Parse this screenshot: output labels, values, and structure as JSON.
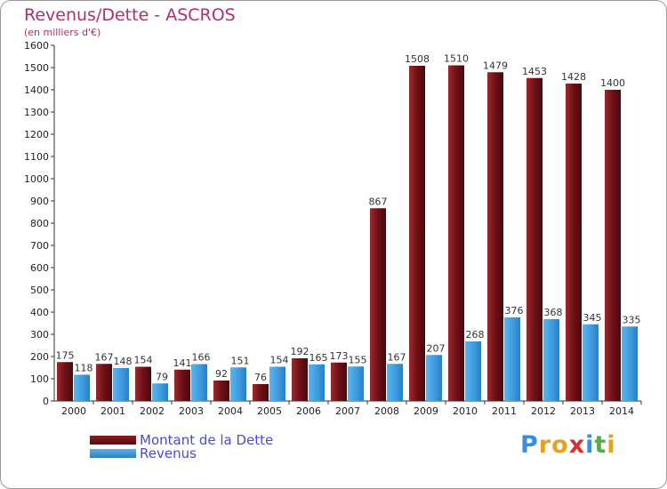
{
  "header": {
    "title": "Revenus/Dette - ASCROS",
    "subtitle": "(en milliers d'€)"
  },
  "colors": {
    "debt": "#7a1218",
    "revenue": "#3f9ee0",
    "title": "#b0306a",
    "legend_text": "#4a4ad8"
  },
  "chart_data": {
    "type": "bar",
    "title": "Revenus/Dette - ASCROS",
    "subtitle": "(en milliers d'€)",
    "xlabel": "",
    "ylabel": "",
    "ylim": [
      0,
      1600
    ],
    "y_ticks": [
      0,
      100,
      200,
      300,
      400,
      500,
      600,
      700,
      800,
      900,
      1000,
      1100,
      1200,
      1300,
      1400,
      1500,
      1600
    ],
    "grid": false,
    "legend_position": "bottom-left",
    "categories": [
      "2000",
      "2001",
      "2002",
      "2003",
      "2004",
      "2005",
      "2006",
      "2007",
      "2008",
      "2009",
      "2010",
      "2011",
      "2012",
      "2013",
      "2014"
    ],
    "series": [
      {
        "name": "Montant de la Dette",
        "values": [
          175,
          167,
          154,
          141,
          92,
          76,
          192,
          173,
          867,
          1508,
          1510,
          1479,
          1453,
          1428,
          1400
        ]
      },
      {
        "name": "Revenus",
        "values": [
          118,
          148,
          79,
          166,
          151,
          154,
          165,
          155,
          167,
          207,
          268,
          376,
          368,
          345,
          335
        ]
      }
    ]
  },
  "legend": {
    "debt_label": "Montant de la Dette",
    "revenue_label": "Revenus"
  },
  "logo": {
    "letters": [
      "P",
      "r",
      "o",
      "x",
      "i",
      "t",
      "i"
    ],
    "colors": [
      "#3a8fd8",
      "#e8a020",
      "#e8a020",
      "#d83030",
      "#3a8fd8",
      "#50b040",
      "#e8a020"
    ]
  }
}
